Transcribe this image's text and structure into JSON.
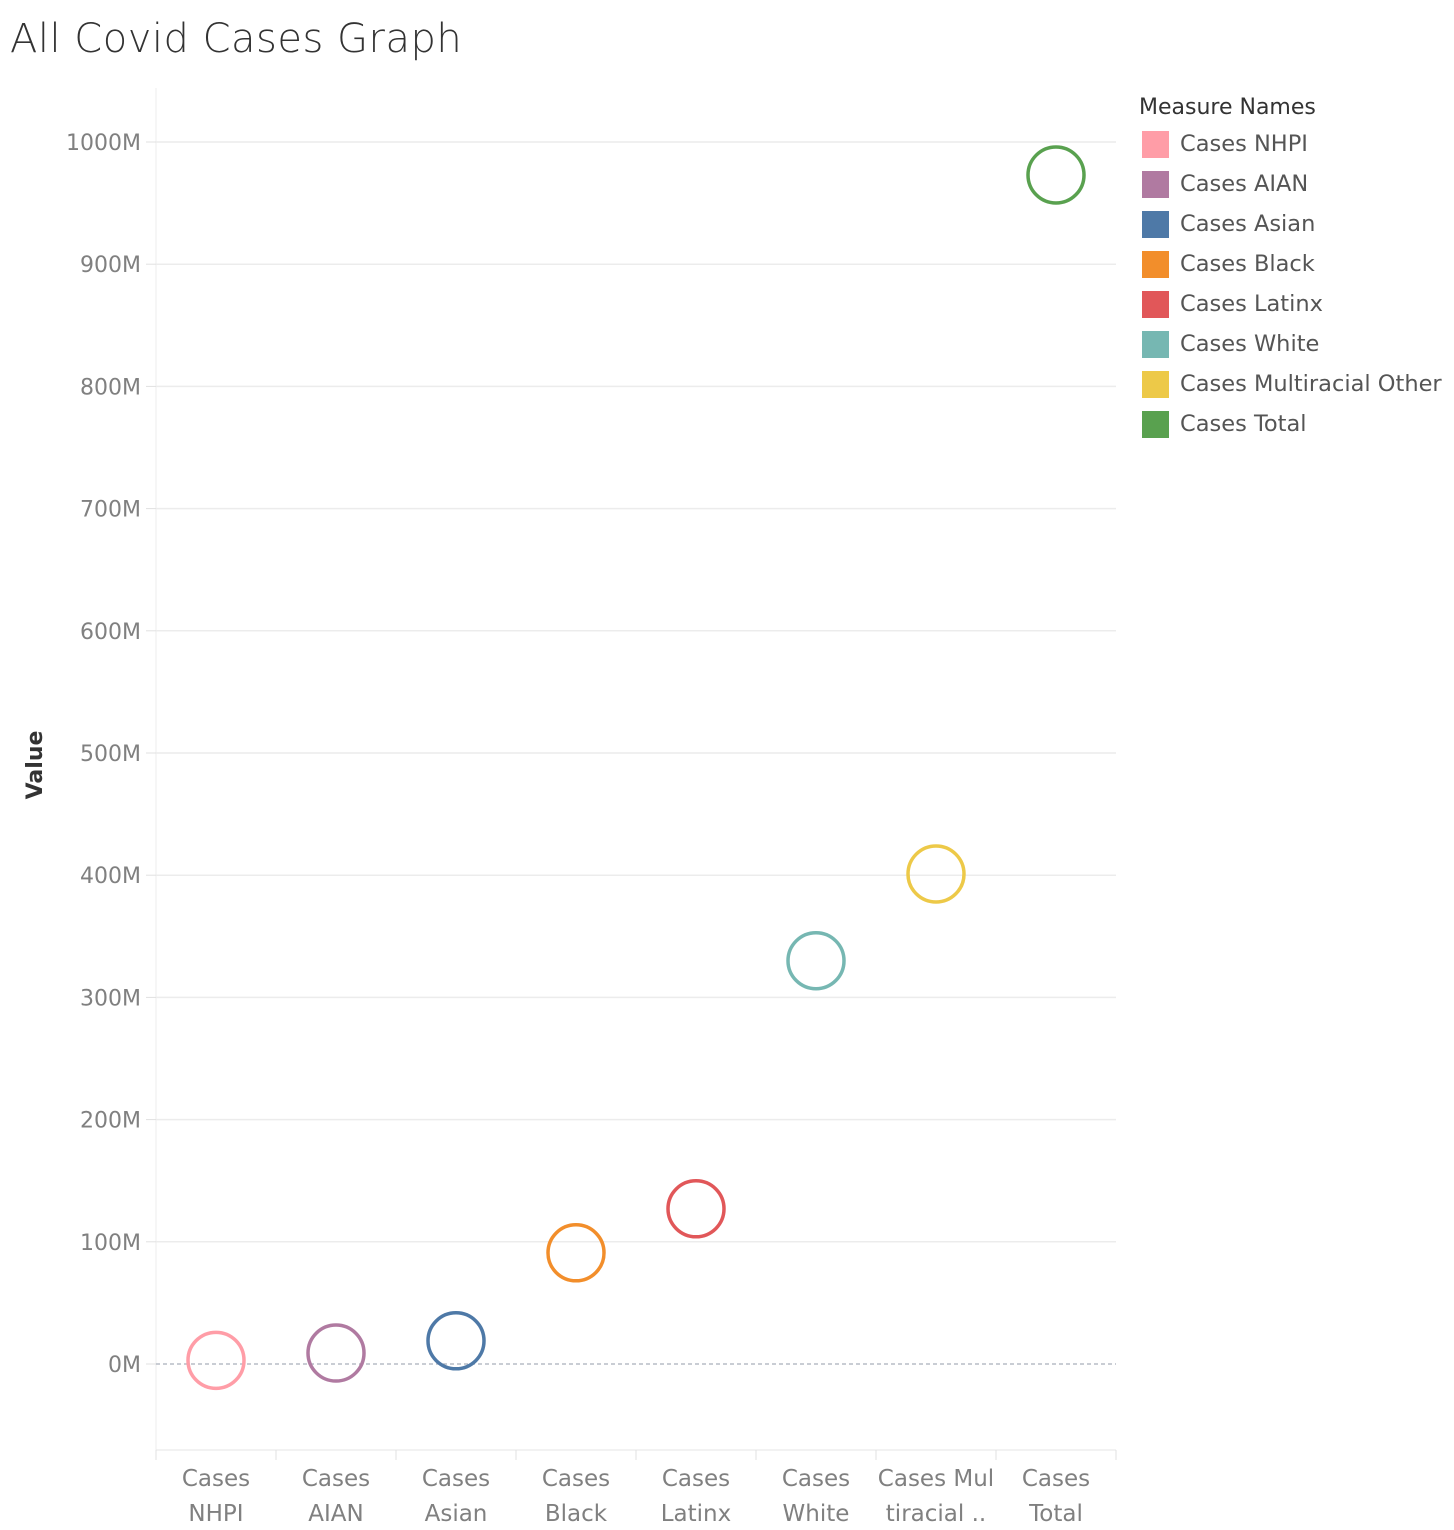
{
  "chart_data": {
    "type": "scatter",
    "title": "All Covid Cases Graph",
    "ylabel": "Value",
    "xlabel": "",
    "ylim": [
      -70,
      1045
    ],
    "yticks": [
      0,
      100,
      200,
      300,
      400,
      500,
      600,
      700,
      800,
      900,
      1000
    ],
    "ytick_labels": [
      "0M",
      "100M",
      "200M",
      "300M",
      "400M",
      "500M",
      "600M",
      "700M",
      "800M",
      "900M",
      "1000M"
    ],
    "categories": [
      [
        "Cases",
        "NHPI"
      ],
      [
        "Cases",
        "AIAN"
      ],
      [
        "Cases",
        "Asian"
      ],
      [
        "Cases",
        "Black"
      ],
      [
        "Cases",
        "Latinx"
      ],
      [
        "Cases",
        "White"
      ],
      [
        "Cases Mul",
        "tiracial .."
      ],
      [
        "Cases",
        "Total"
      ]
    ],
    "series": [
      {
        "name": "Cases NHPI",
        "value": 3,
        "color": "#ff9da7"
      },
      {
        "name": "Cases AIAN",
        "value": 9,
        "color": "#b07aa1"
      },
      {
        "name": "Cases Asian",
        "value": 19,
        "color": "#4e79a7"
      },
      {
        "name": "Cases Black",
        "value": 91,
        "color": "#f28e2b"
      },
      {
        "name": "Cases Latinx",
        "value": 127,
        "color": "#e15759"
      },
      {
        "name": "Cases White",
        "value": 330,
        "color": "#76b7b2"
      },
      {
        "name": "Cases Multiracial Other",
        "value": 401,
        "color": "#edc948"
      },
      {
        "name": "Cases Total",
        "value": 973,
        "color": "#59a14f"
      }
    ],
    "grid": true,
    "legend": {
      "title": "Measure Names",
      "placement": "right"
    }
  }
}
